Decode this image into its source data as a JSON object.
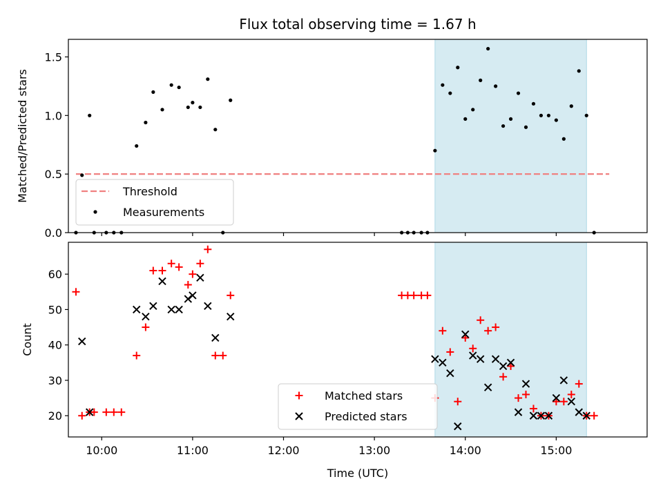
{
  "chart_data": [
    {
      "type": "scatter",
      "title": "Flux total observing time = 1.67 h",
      "ylabel": "Matched/Predicted stars",
      "xlim": [
        "09:38",
        "16:00"
      ],
      "ylim": [
        0,
        1.65
      ],
      "yticks": [
        0,
        0.5,
        1.0,
        1.5
      ],
      "ytick_labels": [
        "0.0",
        "0.5",
        "1.0",
        "1.5"
      ],
      "highlight_span": [
        "13:40",
        "15:20"
      ],
      "highlight_color": "#add8e6",
      "legend_position": "lower-left",
      "threshold": {
        "name": "Threshold",
        "value": 0.5,
        "x_range": [
          "09:43",
          "15:35"
        ],
        "color": "#f08080",
        "style": "dashed"
      },
      "series": [
        {
          "name": "Measurements",
          "marker": "dot",
          "color": "#000000",
          "points": [
            [
              "09:43",
              0
            ],
            [
              "09:47",
              0.49
            ],
            [
              "09:52",
              1.0
            ],
            [
              "09:55",
              0
            ],
            [
              "10:03",
              0
            ],
            [
              "10:08",
              0
            ],
            [
              "10:13",
              0
            ],
            [
              "10:23",
              0.74
            ],
            [
              "10:29",
              0.94
            ],
            [
              "10:34",
              1.2
            ],
            [
              "10:40",
              1.05
            ],
            [
              "10:46",
              1.26
            ],
            [
              "10:51",
              1.24
            ],
            [
              "10:57",
              1.07
            ],
            [
              "11:00",
              1.11
            ],
            [
              "11:05",
              1.07
            ],
            [
              "11:10",
              1.31
            ],
            [
              "11:15",
              0.88
            ],
            [
              "11:20",
              0
            ],
            [
              "11:25",
              1.13
            ],
            [
              "13:18",
              0
            ],
            [
              "13:22",
              0
            ],
            [
              "13:26",
              0
            ],
            [
              "13:31",
              0
            ],
            [
              "13:35",
              0
            ],
            [
              "13:40",
              0.7
            ],
            [
              "13:45",
              1.26
            ],
            [
              "13:50",
              1.19
            ],
            [
              "13:55",
              1.41
            ],
            [
              "14:00",
              0.97
            ],
            [
              "14:05",
              1.05
            ],
            [
              "14:10",
              1.3
            ],
            [
              "14:15",
              1.57
            ],
            [
              "14:20",
              1.25
            ],
            [
              "14:25",
              0.91
            ],
            [
              "14:30",
              0.97
            ],
            [
              "14:35",
              1.19
            ],
            [
              "14:40",
              0.9
            ],
            [
              "14:45",
              1.1
            ],
            [
              "14:50",
              1.0
            ],
            [
              "14:55",
              1.0
            ],
            [
              "15:00",
              0.96
            ],
            [
              "15:05",
              0.8
            ],
            [
              "15:10",
              1.08
            ],
            [
              "15:15",
              1.38
            ],
            [
              "15:20",
              1.0
            ],
            [
              "15:25",
              0
            ]
          ]
        }
      ]
    },
    {
      "type": "scatter",
      "xlabel": "Time (UTC)",
      "ylabel": "Count",
      "xlim": [
        "09:38",
        "16:00"
      ],
      "ylim": [
        14,
        69
      ],
      "yticks": [
        20,
        30,
        40,
        50,
        60
      ],
      "xticks": [
        "10:00",
        "11:00",
        "12:00",
        "13:00",
        "14:00",
        "15:00"
      ],
      "highlight_span": [
        "13:40",
        "15:20"
      ],
      "highlight_color": "#add8e6",
      "legend_position": "lower-center",
      "series": [
        {
          "name": "Matched stars",
          "marker": "plus",
          "color": "#ff0000",
          "points": [
            [
              "09:43",
              55
            ],
            [
              "09:47",
              20
            ],
            [
              "09:52",
              21
            ],
            [
              "09:55",
              21
            ],
            [
              "10:03",
              21
            ],
            [
              "10:08",
              21
            ],
            [
              "10:13",
              21
            ],
            [
              "10:23",
              37
            ],
            [
              "10:29",
              45
            ],
            [
              "10:34",
              61
            ],
            [
              "10:40",
              61
            ],
            [
              "10:46",
              63
            ],
            [
              "10:51",
              62
            ],
            [
              "10:57",
              57
            ],
            [
              "11:00",
              60
            ],
            [
              "11:05",
              63
            ],
            [
              "11:10",
              67
            ],
            [
              "11:15",
              37
            ],
            [
              "11:20",
              37
            ],
            [
              "11:25",
              54
            ],
            [
              "13:18",
              54
            ],
            [
              "13:22",
              54
            ],
            [
              "13:26",
              54
            ],
            [
              "13:31",
              54
            ],
            [
              "13:35",
              54
            ],
            [
              "13:40",
              25
            ],
            [
              "13:45",
              44
            ],
            [
              "13:50",
              38
            ],
            [
              "13:55",
              24
            ],
            [
              "14:00",
              42
            ],
            [
              "14:05",
              39
            ],
            [
              "14:10",
              47
            ],
            [
              "14:15",
              44
            ],
            [
              "14:20",
              45
            ],
            [
              "14:25",
              31
            ],
            [
              "14:30",
              34
            ],
            [
              "14:35",
              25
            ],
            [
              "14:40",
              26
            ],
            [
              "14:45",
              22
            ],
            [
              "14:50",
              20
            ],
            [
              "14:55",
              20
            ],
            [
              "15:00",
              24
            ],
            [
              "15:05",
              24
            ],
            [
              "15:10",
              26
            ],
            [
              "15:15",
              29
            ],
            [
              "15:20",
              20
            ],
            [
              "15:25",
              20
            ]
          ]
        },
        {
          "name": "Predicted stars",
          "marker": "x",
          "color": "#000000",
          "points": [
            [
              "09:47",
              41
            ],
            [
              "09:52",
              21
            ],
            [
              "10:23",
              50
            ],
            [
              "10:29",
              48
            ],
            [
              "10:34",
              51
            ],
            [
              "10:40",
              58
            ],
            [
              "10:46",
              50
            ],
            [
              "10:51",
              50
            ],
            [
              "10:57",
              53
            ],
            [
              "11:00",
              54
            ],
            [
              "11:05",
              59
            ],
            [
              "11:10",
              51
            ],
            [
              "11:15",
              42
            ],
            [
              "11:25",
              48
            ],
            [
              "13:40",
              36
            ],
            [
              "13:45",
              35
            ],
            [
              "13:50",
              32
            ],
            [
              "13:55",
              17
            ],
            [
              "14:00",
              43
            ],
            [
              "14:05",
              37
            ],
            [
              "14:10",
              36
            ],
            [
              "14:15",
              28
            ],
            [
              "14:20",
              36
            ],
            [
              "14:25",
              34
            ],
            [
              "14:30",
              35
            ],
            [
              "14:35",
              21
            ],
            [
              "14:40",
              29
            ],
            [
              "14:45",
              20
            ],
            [
              "14:50",
              20
            ],
            [
              "14:55",
              20
            ],
            [
              "15:00",
              25
            ],
            [
              "15:05",
              30
            ],
            [
              "15:10",
              24
            ],
            [
              "15:15",
              21
            ],
            [
              "15:20",
              20
            ]
          ]
        }
      ]
    }
  ]
}
